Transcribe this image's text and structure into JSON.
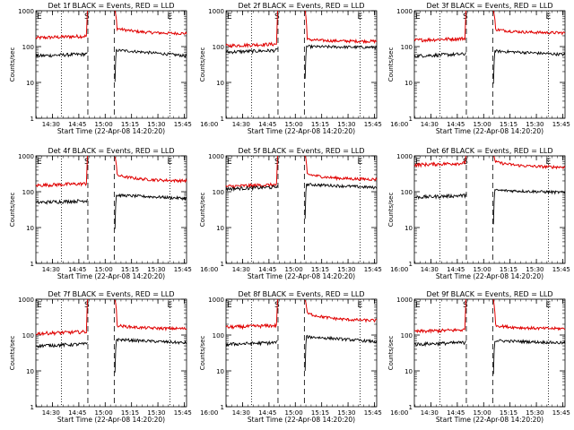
{
  "colors": {
    "events": "#000000",
    "lld": "#e00000",
    "axis": "#000000"
  },
  "common": {
    "ylabel": "Counts/sec",
    "xlabel": "Start Time (22-Apr-08 14:20:20)",
    "x_tick_labels": [
      "14:30",
      "14:45",
      "15:00",
      "15:15",
      "15:30",
      "15:45",
      "16:00"
    ],
    "y_tick_labels": [
      "1",
      "10",
      "100",
      "1000"
    ],
    "marker_e": "E",
    "marker_s": "S"
  },
  "chart_data": [
    {
      "type": "line",
      "title": "Det 1f BLACK = Events, RED = LLD",
      "yscale": "log",
      "ylim": [
        1,
        1000
      ],
      "series": [
        {
          "name": "Events",
          "level_pre": 55,
          "level_post": 80,
          "level_end": 55
        },
        {
          "name": "LLD",
          "level_pre": 175,
          "level_post": 330,
          "level_end": 230
        }
      ]
    },
    {
      "type": "line",
      "title": "Det 2f BLACK = Events, RED = LLD",
      "yscale": "log",
      "ylim": [
        1,
        1000
      ],
      "series": [
        {
          "name": "Events",
          "level_pre": 70,
          "level_post": 100,
          "level_end": 95
        },
        {
          "name": "LLD",
          "level_pre": 105,
          "level_post": 160,
          "level_end": 140
        }
      ]
    },
    {
      "type": "line",
      "title": "Det 3f BLACK = Events, RED = LLD",
      "yscale": "log",
      "ylim": [
        1,
        1000
      ],
      "series": [
        {
          "name": "Events",
          "level_pre": 55,
          "level_post": 75,
          "level_end": 60
        },
        {
          "name": "LLD",
          "level_pre": 150,
          "level_post": 310,
          "level_end": 240
        }
      ]
    },
    {
      "type": "line",
      "title": "Det 4f BLACK = Events, RED = LLD",
      "yscale": "log",
      "ylim": [
        1,
        1000
      ],
      "series": [
        {
          "name": "Events",
          "level_pre": 50,
          "level_post": 80,
          "level_end": 65
        },
        {
          "name": "LLD",
          "level_pre": 150,
          "level_post": 300,
          "level_end": 200
        }
      ]
    },
    {
      "type": "line",
      "title": "Det 5f BLACK = Events, RED = LLD",
      "yscale": "log",
      "ylim": [
        1,
        1000
      ],
      "series": [
        {
          "name": "Events",
          "level_pre": 120,
          "level_post": 160,
          "level_end": 130
        },
        {
          "name": "LLD",
          "level_pre": 140,
          "level_post": 320,
          "level_end": 220
        }
      ]
    },
    {
      "type": "line",
      "title": "Det 6f BLACK = Events, RED = LLD",
      "yscale": "log",
      "ylim": [
        1,
        1000
      ],
      "series": [
        {
          "name": "Events",
          "level_pre": 70,
          "level_post": 110,
          "level_end": 95
        },
        {
          "name": "LLD",
          "level_pre": 560,
          "level_post": 700,
          "level_end": 480
        }
      ]
    },
    {
      "type": "line",
      "title": "Det 7f BLACK = Events, RED = LLD",
      "yscale": "log",
      "ylim": [
        1,
        1000
      ],
      "series": [
        {
          "name": "Events",
          "level_pre": 50,
          "level_post": 75,
          "level_end": 60
        },
        {
          "name": "LLD",
          "level_pre": 110,
          "level_post": 190,
          "level_end": 150
        }
      ]
    },
    {
      "type": "line",
      "title": "Det 8f BLACK = Events, RED = LLD",
      "yscale": "log",
      "ylim": [
        1,
        1000
      ],
      "series": [
        {
          "name": "Events",
          "level_pre": 55,
          "level_post": 90,
          "level_end": 65
        },
        {
          "name": "LLD",
          "level_pre": 165,
          "level_post": 420,
          "level_end": 250
        }
      ]
    },
    {
      "type": "line",
      "title": "Det 9f BLACK = Events, RED = LLD",
      "yscale": "log",
      "ylim": [
        1,
        1000
      ],
      "series": [
        {
          "name": "Events",
          "level_pre": 55,
          "level_post": 70,
          "level_end": 60
        },
        {
          "name": "LLD",
          "level_pre": 125,
          "level_post": 190,
          "level_end": 150
        }
      ]
    }
  ]
}
